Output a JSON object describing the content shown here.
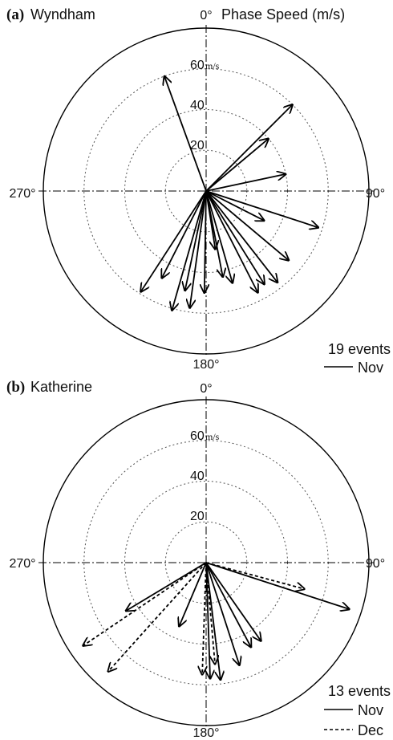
{
  "figure_title": "Phase Speed (m/s)",
  "unit_label": "m/s",
  "chart_data": [
    {
      "type": "polar-vector",
      "panel_tag": "(a)",
      "station": "Wyndham",
      "radial_ticks": [
        20,
        40,
        60
      ],
      "radial_max": 80,
      "direction_labels": {
        "north": "0°",
        "east": "90°",
        "south": "180°",
        "west": "270°"
      },
      "events_label": "19 events",
      "legend": [
        {
          "label": "Nov",
          "style": "solid"
        }
      ],
      "vectors": [
        {
          "azimuth": 340,
          "speed": 60,
          "month": "Nov"
        },
        {
          "azimuth": 45,
          "speed": 60,
          "month": "Nov"
        },
        {
          "azimuth": 50,
          "speed": 40,
          "month": "Nov"
        },
        {
          "azimuth": 78,
          "speed": 40,
          "month": "Nov"
        },
        {
          "azimuth": 108,
          "speed": 58,
          "month": "Nov"
        },
        {
          "azimuth": 117,
          "speed": 32,
          "month": "Nov"
        },
        {
          "azimuth": 130,
          "speed": 53,
          "month": "Nov"
        },
        {
          "azimuth": 142,
          "speed": 57,
          "month": "Nov"
        },
        {
          "azimuth": 148,
          "speed": 54,
          "month": "Nov"
        },
        {
          "azimuth": 153,
          "speed": 56,
          "month": "Nov"
        },
        {
          "azimuth": 164,
          "speed": 47,
          "month": "Nov"
        },
        {
          "azimuth": 169,
          "speed": 43,
          "month": "Nov"
        },
        {
          "azimuth": 171,
          "speed": 29,
          "month": "Nov"
        },
        {
          "azimuth": 181,
          "speed": 50,
          "month": "Nov"
        },
        {
          "azimuth": 188,
          "speed": 58,
          "month": "Nov"
        },
        {
          "azimuth": 192,
          "speed": 50,
          "month": "Nov"
        },
        {
          "azimuth": 196,
          "speed": 61,
          "month": "Nov"
        },
        {
          "azimuth": 207,
          "speed": 48,
          "month": "Nov"
        },
        {
          "azimuth": 213,
          "speed": 59,
          "month": "Nov"
        }
      ]
    },
    {
      "type": "polar-vector",
      "panel_tag": "(b)",
      "station": "Katherine",
      "radial_ticks": [
        20,
        40,
        60
      ],
      "radial_max": 80,
      "direction_labels": {
        "north": "0°",
        "east": "90°",
        "south": "180°",
        "west": "270°"
      },
      "events_label": "13 events",
      "legend": [
        {
          "label": "Nov",
          "style": "solid"
        },
        {
          "label": "Dec",
          "style": "dashed"
        }
      ],
      "vectors": [
        {
          "azimuth": 108,
          "speed": 74,
          "month": "Nov"
        },
        {
          "azimuth": 145,
          "speed": 47,
          "month": "Nov"
        },
        {
          "azimuth": 152,
          "speed": 47,
          "month": "Nov"
        },
        {
          "azimuth": 162,
          "speed": 53,
          "month": "Nov"
        },
        {
          "azimuth": 173,
          "speed": 58,
          "month": "Nov"
        },
        {
          "azimuth": 178,
          "speed": 57,
          "month": "Nov"
        },
        {
          "azimuth": 239,
          "speed": 46,
          "month": "Nov"
        },
        {
          "azimuth": 203,
          "speed": 34,
          "month": "Nov"
        },
        {
          "azimuth": 105,
          "speed": 50,
          "month": "Dec"
        },
        {
          "azimuth": 175,
          "speed": 50,
          "month": "Dec"
        },
        {
          "azimuth": 182,
          "speed": 55,
          "month": "Dec"
        },
        {
          "azimuth": 222,
          "speed": 72,
          "month": "Dec"
        },
        {
          "azimuth": 236,
          "speed": 73,
          "month": "Dec"
        }
      ]
    }
  ]
}
